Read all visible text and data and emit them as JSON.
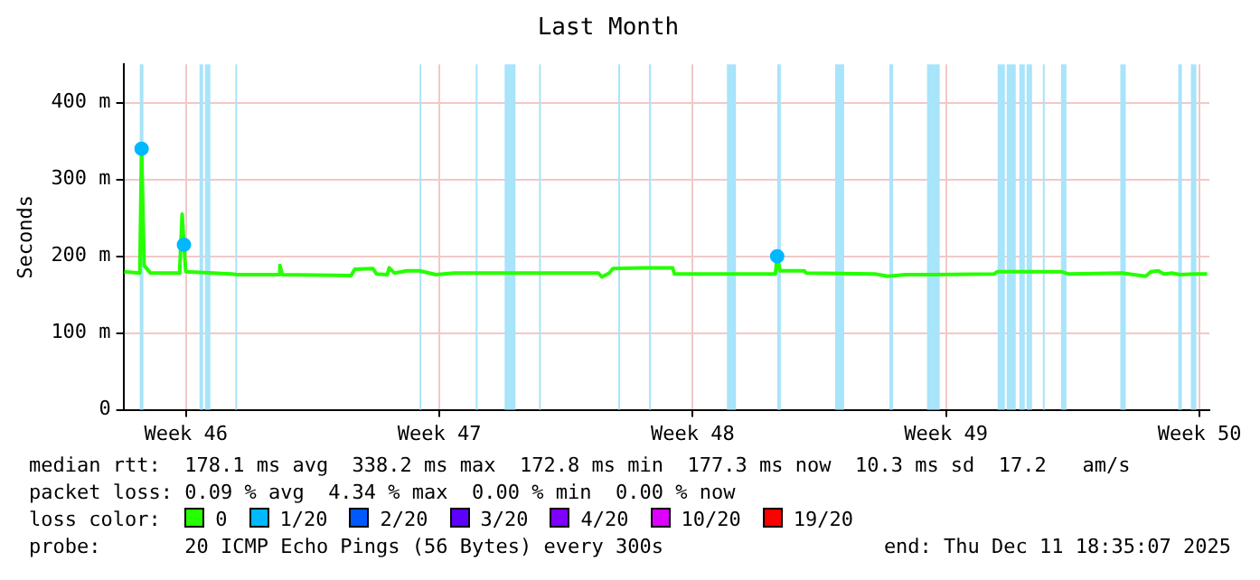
{
  "chart_data": {
    "type": "line",
    "title": "Last Month",
    "ylabel": "Seconds",
    "legend_title": "loss color:",
    "legend": "bottom",
    "grid": true,
    "marker": "none",
    "line_style": "solid",
    "xlim": [
      "2025-11-11T18:35",
      "2025-12-11T18:35"
    ],
    "xticks": [
      {
        "value": "2025-11-13T12:00",
        "label": "Week 46"
      },
      {
        "value": "2025-11-20T12:00",
        "label": "Week 47"
      },
      {
        "value": "2025-11-27T12:00",
        "label": "Week 48"
      },
      {
        "value": "2025-12-04T12:00",
        "label": "Week 49"
      },
      {
        "value": "2025-12-11T12:00",
        "label": "Week 50"
      }
    ],
    "ylim": [
      0,
      450
    ],
    "yticks": [
      0,
      {
        "value": 100,
        "label": "100 m"
      },
      {
        "value": 200,
        "label": "200 m"
      },
      {
        "value": 300,
        "label": "300 m"
      },
      {
        "value": 400,
        "label": "400 m"
      }
    ],
    "series": [
      {
        "name": "0",
        "color": "#26ff00",
        "x": [
          "2025-11-11T19:04",
          "2025-11-12T05:23",
          "2025-11-12T06:35",
          "2025-11-12T08:16",
          "2025-11-12T12:35",
          "2025-11-13T07:47",
          "2025-11-13T09:28",
          "2025-11-13T10:40",
          "2025-11-13T11:52",
          "2025-11-14T18:20",
          "2025-11-14T21:56",
          "2025-11-16T01:32",
          "2025-11-16T02:16",
          "2025-11-16T03:56",
          "2025-11-18T01:32",
          "2025-11-18T03:56",
          "2025-11-18T15:56",
          "2025-11-18T18:20",
          "2025-11-19T01:32",
          "2025-11-19T02:44",
          "2025-11-19T06:20",
          "2025-11-19T14:30",
          "2025-11-19T22:54",
          "2025-11-20T09:42",
          "2025-11-20T21:42",
          "2025-11-24T21:28",
          "2025-11-24T23:52",
          "2025-11-25T04:40",
          "2025-11-25T07:04",
          "2025-11-26T03:28",
          "2025-11-26T22:40",
          "2025-11-26T23:52",
          "2025-11-29T18:49",
          "2025-11-29T20:01",
          "2025-11-29T21:56",
          "2025-11-30T14:01",
          "2025-11-30T15:13",
          "2025-12-02T12:49",
          "2025-12-02T21:13",
          "2025-12-03T09:13",
          "2025-12-04T03:13",
          "2025-12-05T19:47",
          "2025-12-05T22:11",
          "2025-12-07T16:11",
          "2025-12-07T20:59",
          "2025-12-09T08:44",
          "2025-12-10T00:20",
          "2025-12-10T03:56",
          "2025-12-10T08:44",
          "2025-12-10T12:20",
          "2025-12-10T18:20",
          "2025-12-10T23:08",
          "2025-12-11T08:44",
          "2025-12-11T17:08"
        ],
        "values": [
          180,
          178,
          340,
          188,
          178,
          178,
          255,
          215,
          180,
          177,
          176,
          176,
          188,
          176,
          175,
          183,
          184,
          177,
          176,
          185,
          178,
          181,
          181,
          176,
          178,
          178,
          173,
          178,
          184,
          185,
          185,
          177,
          177,
          200,
          181,
          181,
          178,
          177,
          174,
          176,
          176,
          177,
          180,
          180,
          177,
          178,
          174,
          180,
          181,
          177,
          178,
          176,
          177,
          177
        ]
      },
      {
        "name": "1/20",
        "color": "#00b8ff",
        "type": "scatter",
        "marker": "circle",
        "x": [
          "2025-11-12T06:35",
          "2025-11-13T10:40",
          "2025-11-29T20:01"
        ],
        "values": [
          340,
          215,
          200
        ]
      },
      {
        "name": "2/20",
        "color": "#0059ff"
      },
      {
        "name": "3/20",
        "color": "#5e00ff"
      },
      {
        "name": "4/20",
        "color": "#7e00ff"
      },
      {
        "name": "10/20",
        "color": "#dd00ff"
      },
      {
        "name": "19/20",
        "color": "#ff0000"
      }
    ],
    "bands": [
      {
        "axis": "x",
        "from": "2025-11-12T05:23",
        "to": "2025-11-12T07:47",
        "color": "#a8e4fa"
      },
      {
        "axis": "x",
        "from": "2025-11-13T20:59",
        "to": "2025-11-13T23:23",
        "color": "#a8e4fa"
      },
      {
        "axis": "x",
        "from": "2025-11-14T00:35",
        "to": "2025-11-14T04:11",
        "color": "#a8e4fa"
      },
      {
        "axis": "x",
        "from": "2025-11-14T20:44",
        "to": "2025-11-14T21:56",
        "color": "#a8e4fa"
      },
      {
        "axis": "x",
        "from": "2025-11-19T22:54",
        "to": "2025-11-20T00:06",
        "color": "#a8e4fa"
      },
      {
        "axis": "x",
        "from": "2025-11-21T12:06",
        "to": "2025-11-21T13:18",
        "color": "#a8e4fa"
      },
      {
        "axis": "x",
        "from": "2025-11-22T07:18",
        "to": "2025-11-22T14:30",
        "color": "#a8e4fa"
      },
      {
        "axis": "x",
        "from": "2025-11-23T06:06",
        "to": "2025-11-23T07:18",
        "color": "#a8e4fa"
      },
      {
        "axis": "x",
        "from": "2025-11-25T10:40",
        "to": "2025-11-25T11:52",
        "color": "#a8e4fa"
      },
      {
        "axis": "x",
        "from": "2025-11-26T07:04",
        "to": "2025-11-26T08:16",
        "color": "#a8e4fa"
      },
      {
        "axis": "x",
        "from": "2025-11-28T10:40",
        "to": "2025-11-28T16:40",
        "color": "#a8e4fa"
      },
      {
        "axis": "x",
        "from": "2025-11-29T20:01",
        "to": "2025-11-29T22:25",
        "color": "#a8e4fa"
      },
      {
        "axis": "x",
        "from": "2025-12-01T10:25",
        "to": "2025-12-01T16:25",
        "color": "#a8e4fa"
      },
      {
        "axis": "x",
        "from": "2025-12-02T22:25",
        "to": "2025-12-03T00:49",
        "color": "#a8e4fa"
      },
      {
        "axis": "x",
        "from": "2025-12-03T23:23",
        "to": "2025-12-04T07:47",
        "color": "#a8e4fa"
      },
      {
        "axis": "x",
        "from": "2025-12-05T22:11",
        "to": "2025-12-06T02:59",
        "color": "#a8e4fa"
      },
      {
        "axis": "x",
        "from": "2025-12-06T04:11",
        "to": "2025-12-06T10:11",
        "color": "#a8e4fa"
      },
      {
        "axis": "x",
        "from": "2025-12-06T12:35",
        "to": "2025-12-06T16:11",
        "color": "#a8e4fa"
      },
      {
        "axis": "x",
        "from": "2025-12-06T17:23",
        "to": "2025-12-06T20:59",
        "color": "#a8e4fa"
      },
      {
        "axis": "x",
        "from": "2025-12-07T04:11",
        "to": "2025-12-07T05:23",
        "color": "#a8e4fa"
      },
      {
        "axis": "x",
        "from": "2025-12-07T16:11",
        "to": "2025-12-07T19:47",
        "color": "#a8e4fa"
      },
      {
        "axis": "x",
        "from": "2025-12-09T07:32",
        "to": "2025-12-09T11:08",
        "color": "#a8e4fa"
      },
      {
        "axis": "x",
        "from": "2025-12-10T21:56",
        "to": "2025-12-11T00:20",
        "color": "#a8e4fa"
      },
      {
        "axis": "x",
        "from": "2025-12-11T06:20",
        "to": "2025-12-11T09:56",
        "color": "#a8e4fa"
      }
    ],
    "annotations": [
      "median rtt:  178.1 ms avg  338.2 ms max  172.8 ms min  177.3 ms now  10.3 ms sd  17.2   am/s",
      "packet loss: 0.09 % avg  4.34 % max  0.00 % min  0.00 % now",
      "probe:       20 ICMP Echo Pings (56 Bytes) every 300s",
      "end: Thu Dec 11 18:35:07 2025"
    ]
  }
}
